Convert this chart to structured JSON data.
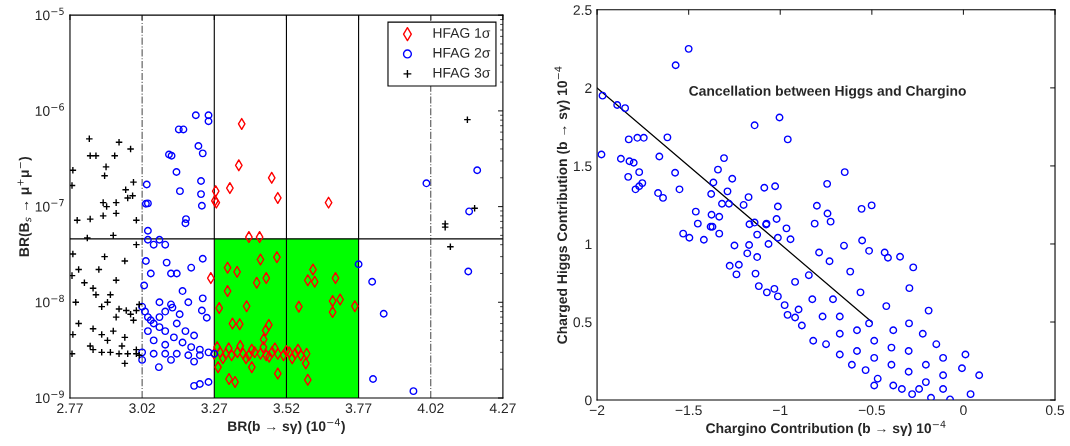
{
  "chart_data": [
    {
      "type": "scatter",
      "xlabel": "BR(b → sγ) (10$^{−4}$)",
      "ylabel": "BR(B$_{s}$ → μ$^{+}$μ$^{−}$)",
      "log": "y",
      "legend": "top right",
      "grid": false,
      "xlim": [
        2.77,
        4.27
      ],
      "xticks": [
        2.77,
        3.02,
        3.27,
        3.52,
        3.77,
        4.02,
        4.27
      ],
      "ylim": [
        1e-09,
        1e-05
      ],
      "yticks": [
        {
          "value": 1e-09,
          "label": "10$^{−9}$"
        },
        {
          "value": 1e-08,
          "label": "10$^{−8}$"
        },
        {
          "value": 1e-07,
          "label": "10$^{−7}$"
        },
        {
          "value": 1e-06,
          "label": "10$^{−6}$"
        },
        {
          "value": 1e-05,
          "label": "10$^{−5}$"
        }
      ],
      "ref_lines": [
        {
          "axis": "x",
          "value": 3.02,
          "line_style": "dashed",
          "color": "#555555"
        },
        {
          "axis": "x",
          "value": 4.02,
          "line_style": "dashed",
          "color": "#555555"
        },
        {
          "axis": "x",
          "value": 3.27,
          "color": "#000000"
        },
        {
          "axis": "x",
          "value": 3.52,
          "color": "#000000"
        },
        {
          "axis": "x",
          "value": 3.77,
          "color": "#000000"
        },
        {
          "axis": "y",
          "value": 4.6e-08,
          "color": "#000000"
        }
      ],
      "bands": [
        {
          "axis": "x",
          "from": 3.27,
          "to": 3.77,
          "color": "#00ff00"
        }
      ],
      "series": [
        {
          "name": "HFAG 1σ",
          "color": "#ff0000",
          "marker": "diamond",
          "x": [
            3.365,
            3.355,
            3.324,
            3.275,
            3.272,
            3.277,
            3.469,
            3.49,
            3.666,
            3.39,
            3.427,
            3.258,
            3.316,
            3.349,
            3.43,
            3.487,
            3.316,
            3.287,
            3.382,
            3.45,
            3.417,
            3.563,
            3.612,
            3.594,
            3.618,
            3.69,
            3.68,
            3.706,
            3.68,
            3.757,
            3.333,
            3.358,
            3.459,
            3.448,
            3.441,
            3.283,
            3.4,
            3.49,
            3.321,
            3.342,
            3.594,
            3.587,
            3.27,
            3.29,
            3.31,
            3.33,
            3.35,
            3.37,
            3.39,
            3.41,
            3.43,
            3.45,
            3.47,
            3.49,
            3.51,
            3.53,
            3.55,
            3.57,
            3.59,
            3.28,
            3.32,
            3.36,
            3.4,
            3.44,
            3.48,
            3.52,
            3.56,
            3.3,
            3.38,
            3.46,
            3.54
          ],
          "values": [
            7.3e-07,
            2.7e-07,
            1.56e-07,
            1.45e-07,
            1.15e-07,
            1.1e-07,
            2e-07,
            1.23e-07,
            1.1e-07,
            4.8e-08,
            4.8e-08,
            1.79e-08,
            2.3e-08,
            2.08e-08,
            2.8e-08,
            2.96e-08,
            1.31e-08,
            8.7e-09,
            9.1e-09,
            1.79e-08,
            1.6e-08,
            9e-09,
            2.2e-08,
            1.7e-08,
            1.64e-08,
            1.79e-08,
            1.03e-08,
            1.07e-08,
            7.9e-09,
            9.1e-09,
            6e-09,
            5.9e-09,
            5.8e-09,
            5.1e-09,
            4.1e-09,
            2.1e-09,
            2.1e-09,
            1.8e-09,
            1.58e-09,
            1.47e-09,
            1.55e-09,
            2.3e-09,
            2.9e-09,
            3e-09,
            2.9e-09,
            2.8e-09,
            3e-09,
            2.9e-09,
            2.8e-09,
            3e-09,
            2.9e-09,
            2.8e-09,
            3e-09,
            2.9e-09,
            2.8e-09,
            3e-09,
            2.9e-09,
            2.8e-09,
            2.9e-09,
            3.4e-09,
            3.3e-09,
            3.5e-09,
            3.2e-09,
            3.4e-09,
            3.3e-09,
            3.1e-09,
            3.2e-09,
            2.6e-09,
            2.6e-09,
            2.7e-09,
            2.6e-09
          ]
        },
        {
          "name": "HFAG 2σ",
          "color": "#0000ff",
          "marker": "circle",
          "x": [
            3.206,
            3.25,
            3.25,
            3.147,
            3.163,
            3.215,
            3.23,
            3.113,
            3.122,
            3.139,
            3.224,
            3.036,
            3.151,
            3.224,
            3.033,
            3.04,
            3.227,
            3.172,
            4.005,
            4.181,
            4.153,
            3.77,
            4.15,
            3.817,
            3.857,
            3.82,
            3.96,
            3.04,
            3.17,
            3.04,
            3.06,
            3.08,
            3.1,
            3.033,
            3.105,
            3.19,
            3.23,
            3.05,
            3.12,
            3.14,
            3.16,
            3.027,
            3.23,
            3.18,
            3.244,
            3.227,
            3.125,
            3.08,
            3.02,
            3.03,
            3.04,
            3.06,
            3.08,
            3.1,
            3.13,
            3.16,
            3.19,
            3.22,
            3.25,
            3.27,
            3.02,
            3.06,
            3.1,
            3.14,
            3.18,
            3.22,
            3.02,
            3.078,
            3.12,
            3.2,
            3.04,
            3.06,
            3.1,
            3.05,
            3.08,
            3.1,
            3.14,
            3.17,
            3.2,
            3.12,
            3.15,
            3.2,
            3.22,
            3.25
          ],
          "values": [
            9e-07,
            9e-07,
            7.8e-07,
            6.4e-07,
            6.4e-07,
            4.3e-07,
            3.6e-07,
            3.5e-07,
            3.4e-07,
            2.3e-07,
            1.85e-07,
            1.7e-07,
            1.45e-07,
            1.35e-07,
            1.07e-07,
            1.08e-07,
            1.02e-07,
            7.4e-08,
            1.75e-07,
            2.4e-07,
            8.9e-08,
            2.5e-08,
            2.1e-08,
            1.64e-08,
            7.6e-09,
            1.58e-09,
            1.18e-09,
            5.6e-08,
            6.7e-08,
            4.5e-08,
            4e-08,
            4.5e-08,
            4e-08,
            2.7e-08,
            2.6e-08,
            2.3e-08,
            2.85e-08,
            2e-08,
            2e-08,
            2e-08,
            1.31e-08,
            1.5e-08,
            1.1e-08,
            1e-08,
            6.9e-09,
            8.2e-09,
            8.8e-09,
            1e-08,
            9e-09,
            8e-09,
            7e-09,
            6e-09,
            5.5e-09,
            5e-09,
            4.3e-09,
            3.8e-09,
            3.4e-09,
            3.2e-09,
            3e-09,
            2.9e-09,
            3e-09,
            2.9e-09,
            2.9e-09,
            2.9e-09,
            2.8e-09,
            2.8e-09,
            2.5e-09,
            2.1e-09,
            2.5e-09,
            2.4e-09,
            5e-09,
            4e-09,
            3.6e-09,
            6.5e-09,
            7e-09,
            8e-09,
            6e-09,
            5e-09,
            4.5e-09,
            9.5e-09,
            7.5e-09,
            1.34e-09,
            1.4e-09,
            1.47e-09
          ]
        },
        {
          "name": "HFAG 3σ",
          "color": "#000000",
          "marker": "cross",
          "x": [
            2.837,
            2.94,
            2.98,
            2.84,
            2.86,
            2.925,
            2.895,
            2.78,
            2.89,
            2.777,
            2.99,
            2.963,
            2.987,
            2.97,
            2.885,
            2.93,
            2.897,
            2.93,
            2.885,
            2.84,
            3.0,
            2.795,
            4.147,
            4.172,
            4.07,
            4.088,
            4.07,
            2.92,
            2.83,
            2.96,
            2.89,
            2.78,
            3.0,
            2.777,
            2.87,
            2.93,
            2.85,
            2.91,
            2.79,
            2.88,
            2.965,
            3.0,
            2.99,
            2.93,
            2.85,
            2.78,
            2.88,
            2.92,
            2.96,
            3.0,
            2.85,
            2.88,
            2.91,
            2.94,
            2.97,
            3.0,
            3.01,
            2.777,
            2.96,
            2.8,
            2.82,
            2.86,
            2.9,
            2.94,
            2.98,
            3.01,
            2.8,
            2.84,
            2.9,
            2.95
          ],
          "values": [
            5.1e-07,
            4.7e-07,
            4e-07,
            3.4e-07,
            3.4e-07,
            3.4e-07,
            2.6e-07,
            2.4e-07,
            2.1e-07,
            1.66e-07,
            1.8e-07,
            1.5e-07,
            1.3e-07,
            1.23e-07,
            1.1e-07,
            1.1e-07,
            1e-07,
            8.5e-08,
            8e-08,
            7.4e-08,
            7.2e-08,
            7.2e-08,
            8.1e-07,
            9.6e-08,
            6.6e-08,
            3.8e-08,
            6.1e-08,
            5e-08,
            4.7e-08,
            2.7e-08,
            3e-08,
            3.2e-08,
            4e-08,
            1.9e-08,
            2.2e-08,
            1.7e-08,
            1.4e-08,
            1.2e-08,
            1e-08,
            9e-09,
            8.2e-09,
            8.2e-09,
            6.5e-09,
            7e-09,
            5.3e-09,
            4.6e-09,
            4.6e-09,
            5e-09,
            4.3e-09,
            3.2e-09,
            3.2e-09,
            3e-09,
            3e-09,
            2.9e-09,
            2.9e-09,
            2.9e-09,
            2.8e-09,
            2.9e-09,
            2.3e-09,
            2.2e-08,
            1.6e-08,
            1.2e-08,
            1e-08,
            8.5e-09,
            7.5e-09,
            9.5e-09,
            6e-09,
            3.5e-09,
            4e-09,
            3.5e-09
          ]
        }
      ]
    },
    {
      "type": "scatter",
      "xlabel": "Chargino Contribution (b → sγ) 10$^{−4}$",
      "ylabel": "Charged Higgs Contribution (b → sγ) 10$^{−4}$",
      "grid": false,
      "annotations": [
        "Cancellation between Higgs and Chargino"
      ],
      "xlim": [
        -2,
        0.5
      ],
      "xticks": [
        {
          "value": -2,
          "label": "−2"
        },
        {
          "value": -1.5,
          "label": "−1.5"
        },
        {
          "value": -1,
          "label": "−1"
        },
        {
          "value": -0.5,
          "label": "−0.5"
        },
        0,
        0.5
      ],
      "ylim": [
        0,
        2.5
      ],
      "yticks": [
        0,
        0.5,
        1,
        1.5,
        2,
        2.5
      ],
      "series": [
        {
          "color": "#0000ff",
          "marker": "circle",
          "x": [
            -1.5,
            -1.571,
            -1.97,
            -1.89,
            -1.847,
            -1.976,
            -1.827,
            -1.78,
            -1.745,
            -1.616,
            -1.87,
            -1.823,
            -1.8,
            -1.77,
            -1.83,
            -1.753,
            -1.77,
            -1.79,
            -1.66,
            -1.574,
            -1.55,
            -1.667,
            -1.64,
            -1.14,
            -1.004,
            -0.959,
            -1.307,
            -1.34,
            -1.365,
            -1.262,
            -1.288,
            -1.377,
            -1.318,
            -1.28,
            -1.2,
            -1.173,
            -1.087,
            -1.028,
            -1.013,
            -1.02,
            -1.077,
            -1.14,
            -1.168,
            -1.333,
            -1.375,
            -1.461,
            -1.45,
            -1.37,
            -0.744,
            -0.648,
            -0.8,
            -0.742,
            -0.725,
            -0.556,
            -0.501,
            -0.812,
            -1.53,
            -1.496,
            -1.417,
            -1.38,
            -1.333,
            -1.276,
            -1.239,
            -1.226,
            -1.25,
            -1.18,
            -1.126,
            -1.17,
            -1.126,
            -1.075,
            -1.013,
            -0.966,
            -0.944,
            -1.064,
            -1.135,
            -1.117,
            -1.073,
            -1.032,
            -1.013,
            -0.976,
            -0.96,
            -0.919,
            -0.882,
            -0.82,
            -0.75,
            -0.675,
            -0.609,
            -0.534,
            -0.468,
            -0.383,
            -0.28,
            -0.177,
            -0.073,
            0.039,
            0.086,
            0.011,
            -0.008,
            -0.19,
            -0.274,
            -0.346,
            -0.295,
            -0.43,
            -0.412,
            -0.553,
            -0.515,
            -0.652,
            -0.421,
            -0.515,
            -0.383,
            -0.297,
            -0.222,
            -0.148,
            -0.111,
            -0.731,
            -0.788,
            -0.844,
            -0.919,
            -0.618,
            -0.562,
            -0.712,
            -0.825,
            -0.9,
            -0.769,
            -0.675,
            -0.581,
            -0.487,
            -0.393,
            -0.299,
            -0.205,
            -0.111,
            -0.581,
            -0.487,
            -0.393,
            -0.299,
            -0.205,
            -0.111,
            -0.675,
            -0.487,
            -0.336,
            -0.242
          ],
          "values": [
            2.25,
            2.145,
            1.95,
            1.89,
            1.87,
            1.573,
            1.67,
            1.68,
            1.68,
            1.683,
            1.546,
            1.53,
            1.52,
            1.46,
            1.43,
            1.39,
            1.37,
            1.35,
            1.56,
            1.456,
            1.35,
            1.326,
            1.295,
            1.76,
            1.81,
            1.67,
            1.55,
            1.476,
            1.394,
            1.418,
            1.337,
            1.32,
            1.258,
            1.258,
            1.25,
            1.3,
            1.36,
            1.37,
            1.24,
            1.16,
            1.125,
            1.137,
            1.126,
            1.174,
            1.187,
            1.207,
            1.13,
            1.11,
            1.385,
            1.46,
            1.245,
            1.195,
            1.143,
            1.225,
            1.247,
            1.13,
            1.066,
            1.04,
            1.027,
            1.11,
            1.066,
            0.86,
            0.805,
            0.867,
            0.99,
            0.94,
            0.916,
            0.993,
            1.06,
            1.13,
            1.04,
            1.1,
            1.03,
            1.0,
            0.81,
            0.73,
            0.69,
            0.712,
            0.664,
            0.608,
            0.546,
            0.529,
            0.478,
            0.38,
            0.358,
            0.292,
            0.226,
            0.192,
            0.137,
            0.093,
            0.038,
            0.015,
            0.004,
            0.038,
            0.159,
            0.292,
            0.204,
            0.573,
            0.85,
            0.918,
            0.717,
            0.945,
            0.912,
            1.022,
            0.956,
            0.989,
            0.602,
            0.491,
            0.447,
            0.491,
            0.425,
            0.358,
            0.27,
            0.889,
            0.945,
            0.8,
            0.757,
            0.823,
            0.69,
            0.646,
            0.646,
            0.58,
            0.535,
            0.535,
            0.447,
            0.38,
            0.336,
            0.314,
            0.226,
            0.159,
            0.314,
            0.27,
            0.226,
            0.181,
            0.115,
            0.071,
            0.425,
            0.093,
            0.071,
            0.071
          ]
        },
        {
          "type": "line",
          "color": "#000000",
          "marker": "none",
          "x": [
            -2,
            -0.5
          ],
          "values": [
            2,
            0.5
          ]
        }
      ]
    }
  ]
}
